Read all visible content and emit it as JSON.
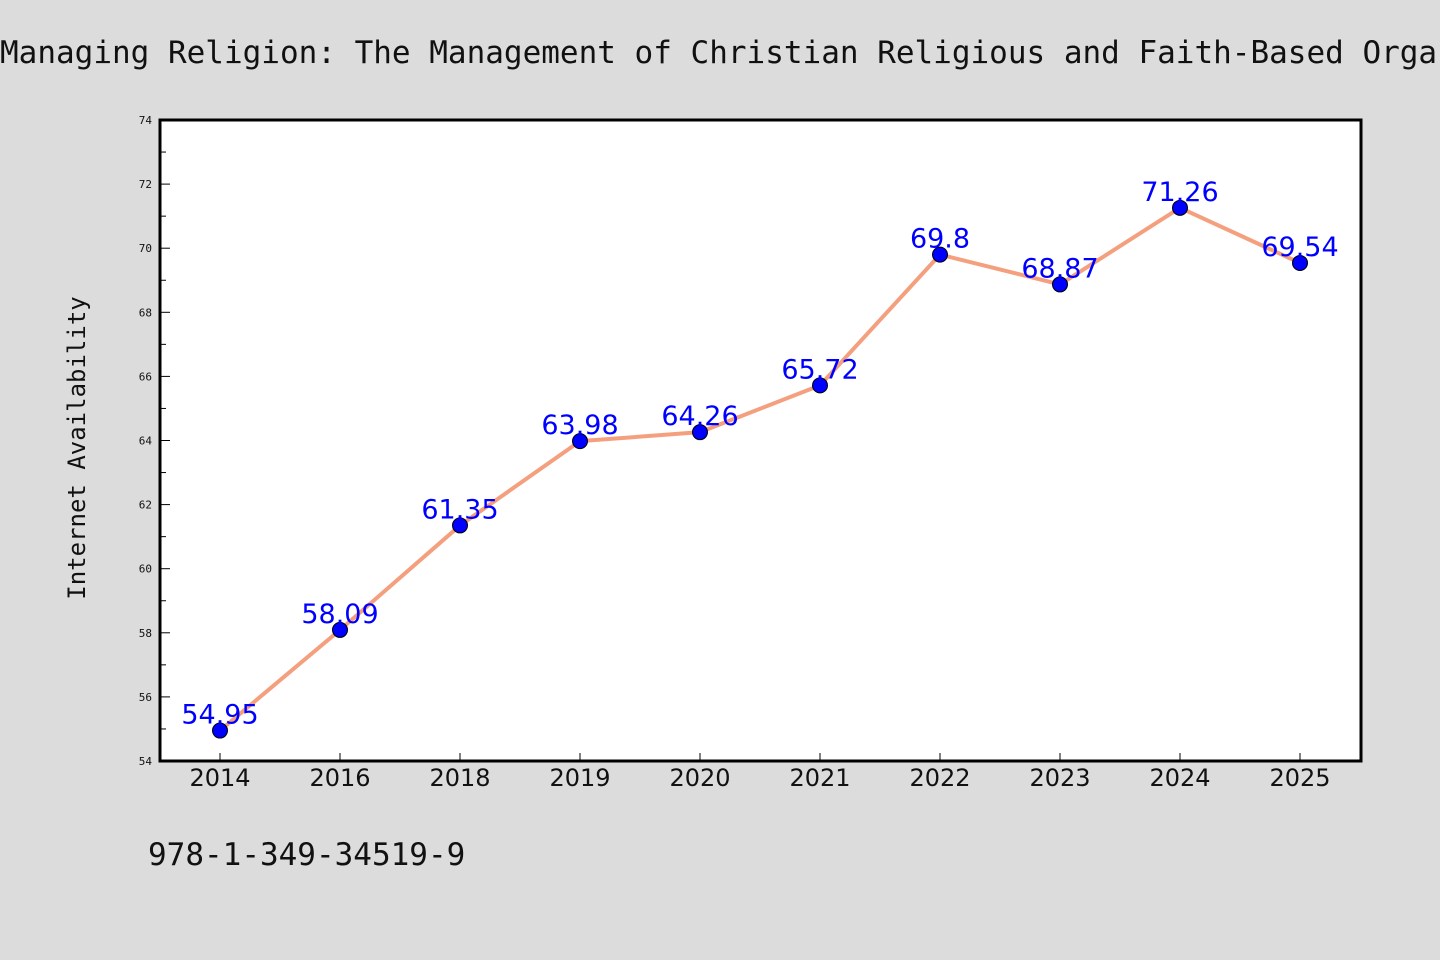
{
  "page": {
    "background": "#dcdcdc",
    "footer_text": "978-1-349-34519-9"
  },
  "chart_data": {
    "type": "line",
    "title": "Managing Religion: The Management of Christian Religious and Faith-Based Organiz",
    "xlabel": "",
    "ylabel": "Internet Availability",
    "categories": [
      "2014",
      "2016",
      "2018",
      "2019",
      "2020",
      "2021",
      "2022",
      "2023",
      "2024",
      "2025"
    ],
    "series": [
      {
        "values": [
          54.95,
          58.09,
          61.35,
          63.98,
          64.26,
          65.72,
          69.8,
          68.87,
          71.26,
          69.54
        ],
        "labels": [
          "54.95",
          "58.09",
          "61.35",
          "63.98",
          "64.26",
          "65.72",
          "69.8",
          "68.87",
          "71.26",
          "69.54"
        ],
        "line_color": "#f4a07f",
        "marker_color": "#0000ff",
        "label_color": "#0000ff"
      }
    ],
    "ylim": [
      54,
      74
    ],
    "yticks_major": [
      "54",
      "56",
      "58",
      "60",
      "62",
      "64",
      "66",
      "68",
      "70",
      "72",
      "74"
    ],
    "grid": false,
    "legend": "none"
  }
}
